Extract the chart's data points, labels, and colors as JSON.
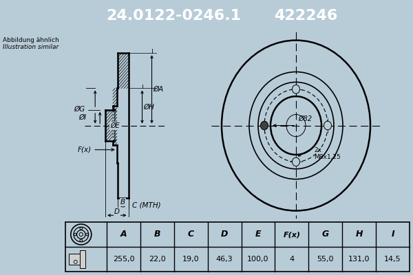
{
  "title_part1": "24.0122-0246.1",
  "title_part2": "422246",
  "header_bg": "#1464b4",
  "header_text_color": "#ffffff",
  "bg_color": "#b8ccd8",
  "drawing_bg": "#b8ccd8",
  "note_line1": "Abbildung ähnlich",
  "note_line2": "Illustration similar",
  "table_bg": "#ffffff",
  "table_headers": [
    "A",
    "B",
    "C",
    "D",
    "E",
    "F(x)",
    "G",
    "H",
    "I"
  ],
  "table_values": [
    "255,0",
    "22,0",
    "19,0",
    "46,3",
    "100,0",
    "4",
    "55,0",
    "131,0",
    "14,5"
  ],
  "dark": "#000000",
  "hatch_color": "#000000"
}
